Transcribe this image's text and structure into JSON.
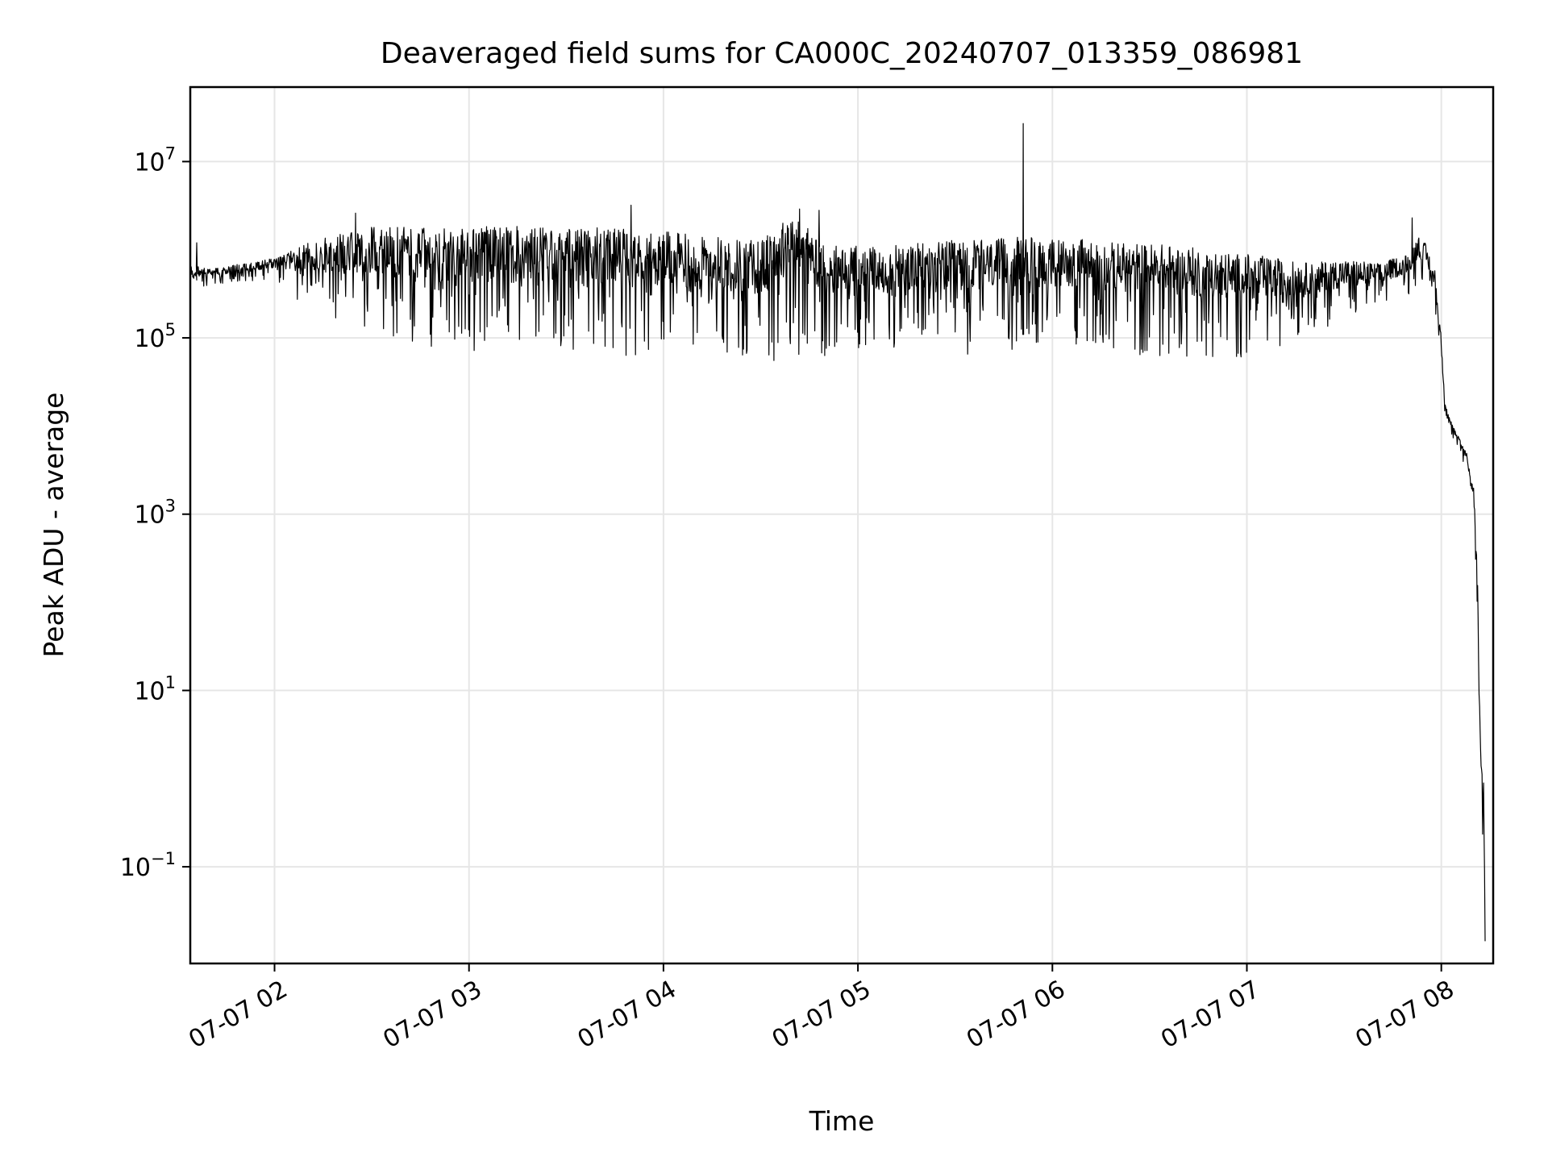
{
  "chart_data": {
    "type": "line",
    "title": "Deaveraged field sums for CA000C_20240707_013359_086981",
    "xlabel": "Time",
    "ylabel": "Peak ADU - average",
    "x_scale": "time",
    "y_scale": "log",
    "xlim": [
      "2024-07-07T01:34:00",
      "2024-07-07T08:16:00"
    ],
    "ylim": [
      0.008,
      70000000
    ],
    "x_ticks": [
      {
        "value": "2024-07-07T02:00:00",
        "label": "07-07 02"
      },
      {
        "value": "2024-07-07T03:00:00",
        "label": "07-07 03"
      },
      {
        "value": "2024-07-07T04:00:00",
        "label": "07-07 04"
      },
      {
        "value": "2024-07-07T05:00:00",
        "label": "07-07 05"
      },
      {
        "value": "2024-07-07T06:00:00",
        "label": "07-07 06"
      },
      {
        "value": "2024-07-07T07:00:00",
        "label": "07-07 07"
      },
      {
        "value": "2024-07-07T08:00:00",
        "label": "07-07 08"
      }
    ],
    "y_ticks": [
      {
        "value": 0.1,
        "base": "10",
        "exponent": "−1"
      },
      {
        "value": 10,
        "base": "10",
        "exponent": "1"
      },
      {
        "value": 1000,
        "base": "10",
        "exponent": "3"
      },
      {
        "value": 100000,
        "base": "10",
        "exponent": "5"
      },
      {
        "value": 10000000,
        "base": "10",
        "exponent": "7"
      }
    ],
    "grid": true,
    "series": [
      {
        "color": "#000000",
        "x": [
          "2024-07-07T01:34:00",
          "2024-07-07T01:40:00",
          "2024-07-07T01:50:00",
          "2024-07-07T02:00:00",
          "2024-07-07T02:10:00",
          "2024-07-07T02:20:00",
          "2024-07-07T02:30:00",
          "2024-07-07T02:40:00",
          "2024-07-07T02:50:00",
          "2024-07-07T03:00:00",
          "2024-07-07T03:10:00",
          "2024-07-07T03:20:00",
          "2024-07-07T03:30:00",
          "2024-07-07T03:40:00",
          "2024-07-07T03:50:00",
          "2024-07-07T04:00:00",
          "2024-07-07T04:10:00",
          "2024-07-07T04:20:00",
          "2024-07-07T04:30:00",
          "2024-07-07T04:40:00",
          "2024-07-07T04:50:00",
          "2024-07-07T05:00:00",
          "2024-07-07T05:10:00",
          "2024-07-07T05:20:00",
          "2024-07-07T05:30:00",
          "2024-07-07T05:40:00",
          "2024-07-07T05:50:00",
          "2024-07-07T06:00:00",
          "2024-07-07T06:10:00",
          "2024-07-07T06:20:00",
          "2024-07-07T06:30:00",
          "2024-07-07T06:40:00",
          "2024-07-07T06:50:00",
          "2024-07-07T07:00:00",
          "2024-07-07T07:10:00",
          "2024-07-07T07:20:00",
          "2024-07-07T07:30:00",
          "2024-07-07T07:40:00",
          "2024-07-07T07:50:00",
          "2024-07-07T07:53:00",
          "2024-07-07T07:55:00",
          "2024-07-07T07:58:00",
          "2024-07-07T08:00:00",
          "2024-07-07T08:01:00",
          "2024-07-07T08:03:00",
          "2024-07-07T08:05:00",
          "2024-07-07T08:08:00",
          "2024-07-07T08:10:00",
          "2024-07-07T08:11:00",
          "2024-07-07T08:12:00",
          "2024-07-07T08:13:00",
          "2024-07-07T08:13:30"
        ],
        "low": [
          300000,
          400000,
          400000,
          450000,
          200000,
          150000,
          120000,
          80000,
          70000,
          70000,
          80000,
          80000,
          70000,
          70000,
          60000,
          60000,
          70000,
          60000,
          50000,
          60000,
          60000,
          60000,
          70000,
          70000,
          60000,
          70000,
          70000,
          80000,
          80000,
          70000,
          60000,
          60000,
          60000,
          60000,
          80000,
          120000,
          150000,
          200000,
          300000,
          400000,
          350000,
          200000,
          50000,
          15000,
          8000,
          5000,
          3000,
          1000,
          100,
          1,
          0.1,
          0.008
        ],
        "high": [
          700000,
          600000,
          700000,
          800000,
          1200000,
          1500000,
          1800000,
          1800000,
          1800000,
          1800000,
          1900000,
          1800000,
          1700000,
          1800000,
          1700000,
          1600000,
          1500000,
          1400000,
          1300000,
          2500000,
          1200000,
          1100000,
          1100000,
          1200000,
          1300000,
          1300000,
          1400000,
          1400000,
          1300000,
          1200000,
          1200000,
          1100000,
          1000000,
          900000,
          800000,
          700000,
          800000,
          700000,
          900000,
          1500000,
          1200000,
          600000,
          100000,
          20000,
          12000,
          8000,
          5000,
          2000,
          500,
          3,
          1.5,
          0.05
        ],
        "spikes": [
          {
            "x": "2024-07-07T01:36:00",
            "y": 1200000
          },
          {
            "x": "2024-07-07T02:25:00",
            "y": 2600000
          },
          {
            "x": "2024-07-07T03:50:00",
            "y": 3200000
          },
          {
            "x": "2024-07-07T04:42:00",
            "y": 2900000
          },
          {
            "x": "2024-07-07T04:48:00",
            "y": 2800000
          },
          {
            "x": "2024-07-07T05:51:00",
            "y": 27000000
          },
          {
            "x": "2024-07-07T07:51:00",
            "y": 2300000
          }
        ]
      }
    ]
  }
}
